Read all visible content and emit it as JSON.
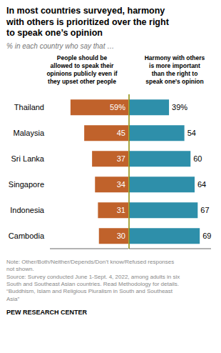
{
  "chart_data": {
    "type": "bar",
    "orientation": "horizontal",
    "title": "In most countries surveyed, harmony\nwith others is prioritized over the right\nto speak one’s opinion",
    "subtitle": "% in each country who say that …",
    "categories": [
      "Thailand",
      "Malaysia",
      "Sri Lanka",
      "Singapore",
      "Indonesia",
      "Cambodia"
    ],
    "series": [
      {
        "name": "People should be\nallowed to speak their\nopinions publicly even if\nthey upset other people",
        "color": "#c0622b",
        "values": [
          59,
          45,
          37,
          34,
          31,
          30
        ],
        "value_labels": [
          "59%",
          "45",
          "37",
          "34",
          "31",
          "30"
        ]
      },
      {
        "name": "Harmony with others\nis more important\nthan the right to\nspeak one’s opinion",
        "color": "#2e8faa",
        "values": [
          39,
          54,
          60,
          64,
          67,
          69
        ],
        "value_labels": [
          "39%",
          "54",
          "60",
          "64",
          "67",
          "69"
        ]
      }
    ],
    "xlim": [
      0,
      80
    ],
    "tick_labels": "y",
    "grid": false,
    "data_labels": true,
    "annotations": [
      "Note: Other/Both/Neither/Depends/Don’t know/Refused responses\nnot shown.\nSource: Survey conducted June 1-Sept. 4, 2022, among adults in six\nSouth and Southeast Asian countries. Read Methodology for details.\n“Buddhism, Islam and Religious Pluralism in South and Southeast\nAsia”",
      "PEW RESEARCH CENTER"
    ]
  }
}
